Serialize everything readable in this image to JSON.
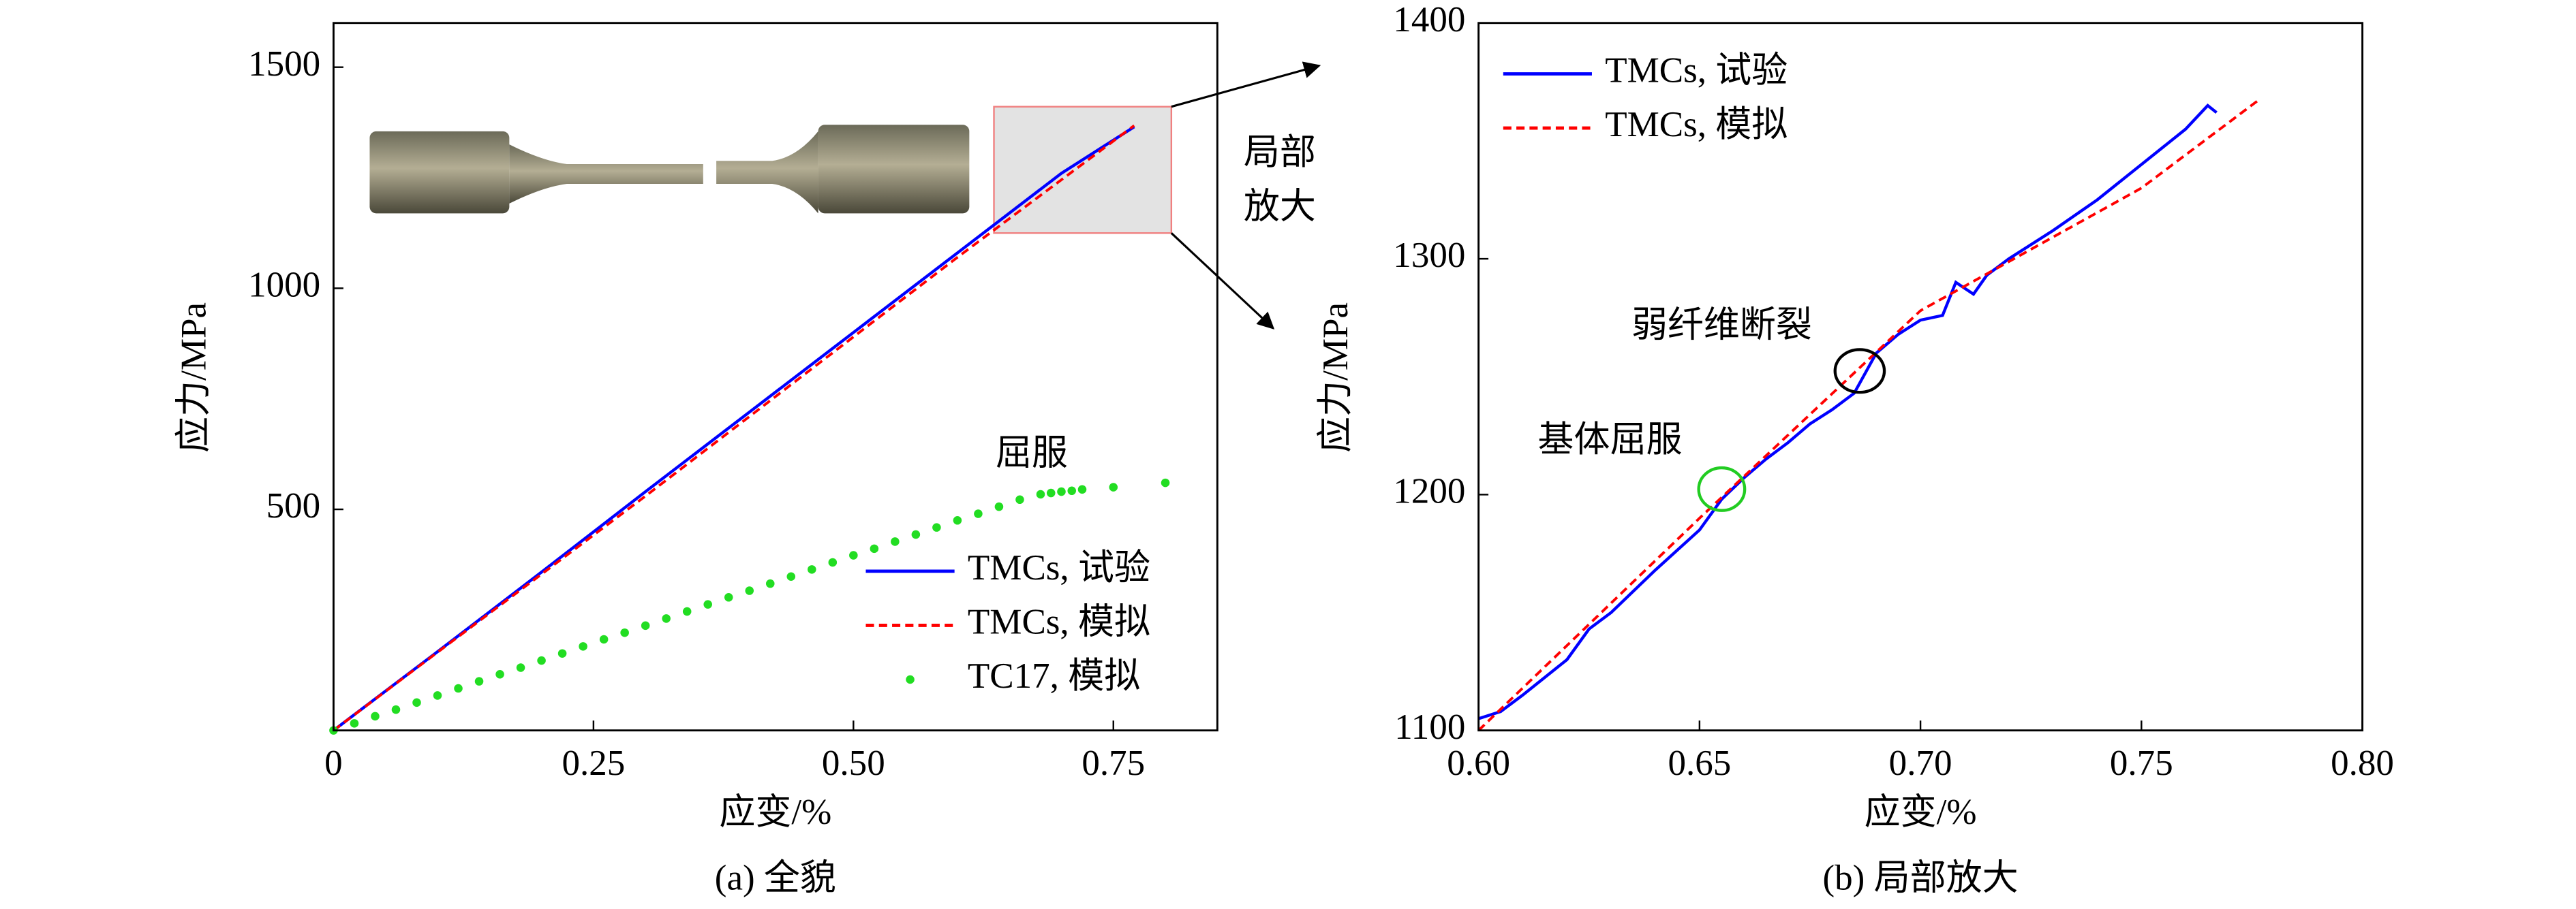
{
  "chart_data": [
    {
      "type": "line",
      "caption": "(a) 全貌",
      "xlabel": "应变/%",
      "ylabel": "应力/MPa",
      "xlim": [
        0,
        0.85
      ],
      "ylim": [
        0,
        1600
      ],
      "xticks": [
        0,
        0.25,
        {
          "value": 0.5,
          "label": "0.50"
        },
        0.75
      ],
      "yticks": [
        500,
        1000,
        1500
      ],
      "annotations": [
        "屈服",
        "局部",
        "放大"
      ],
      "series": [
        {
          "name": "TMCs, 试验",
          "color": "#0000ff",
          "style": "solid",
          "x": [
            0,
            0.1,
            0.2,
            0.3,
            0.4,
            0.5,
            0.6,
            0.7,
            0.77
          ],
          "values": [
            0,
            178,
            358,
            540,
            720,
            900,
            1080,
            1260,
            1365
          ]
        },
        {
          "name": "TMCs, 模拟",
          "color": "#ff0000",
          "style": "dashed",
          "x": [
            0,
            0.3,
            0.6,
            0.77
          ],
          "values": [
            0,
            530,
            1070,
            1368
          ]
        },
        {
          "name": "TC17, 模拟",
          "color": "#22dd22",
          "style": "dots",
          "x": [
            0,
            0.02,
            0.04,
            0.06,
            0.08,
            0.1,
            0.12,
            0.14,
            0.16,
            0.18,
            0.2,
            0.22,
            0.24,
            0.26,
            0.28,
            0.3,
            0.32,
            0.34,
            0.36,
            0.38,
            0.4,
            0.42,
            0.44,
            0.46,
            0.48,
            0.5,
            0.52,
            0.54,
            0.56,
            0.58,
            0.6,
            0.62,
            0.64,
            0.66,
            0.68,
            0.69,
            0.7,
            0.71,
            0.72,
            0.75,
            0.8
          ],
          "values": [
            0,
            16,
            32,
            47,
            63,
            79,
            95,
            111,
            127,
            142,
            158,
            174,
            190,
            206,
            221,
            237,
            253,
            269,
            285,
            301,
            316,
            332,
            348,
            364,
            380,
            396,
            411,
            427,
            443,
            459,
            475,
            490,
            506,
            522,
            534,
            537,
            540,
            542,
            545,
            550,
            560
          ]
        }
      ]
    },
    {
      "type": "line",
      "caption": "(b) 局部放大",
      "xlabel": "应变/%",
      "ylabel": "应力/MPa",
      "xlim": [
        0.6,
        0.8
      ],
      "ylim": [
        1100,
        1400
      ],
      "xticks": [
        {
          "value": 0.6,
          "label": "0.60"
        },
        0.65,
        {
          "value": 0.7,
          "label": "0.70"
        },
        0.75,
        {
          "value": 0.8,
          "label": "0.80"
        }
      ],
      "yticks": [
        1100,
        1200,
        1300,
        1400
      ],
      "annotations": [
        "弱纤维断裂",
        "基体屈服"
      ],
      "series": [
        {
          "name": "TMCs, 试验",
          "color": "#0000ff",
          "style": "solid",
          "x": [
            0.6,
            0.605,
            0.61,
            0.62,
            0.625,
            0.63,
            0.64,
            0.65,
            0.655,
            0.66,
            0.665,
            0.67,
            0.675,
            0.68,
            0.685,
            0.69,
            0.695,
            0.7,
            0.705,
            0.708,
            0.712,
            0.715,
            0.72,
            0.73,
            0.74,
            0.75,
            0.76,
            0.765,
            0.767
          ],
          "values": [
            1105,
            1108,
            1115,
            1130,
            1143,
            1150,
            1168,
            1185,
            1198,
            1207,
            1215,
            1222,
            1230,
            1236,
            1243,
            1260,
            1268,
            1274,
            1276,
            1290,
            1285,
            1293,
            1300,
            1312,
            1325,
            1340,
            1355,
            1365,
            1362
          ]
        },
        {
          "name": "TMCs, 模拟",
          "color": "#ff0000",
          "style": "dashed",
          "x": [
            0.6,
            0.65,
            0.7,
            0.75,
            0.777
          ],
          "values": [
            1100,
            1190,
            1278,
            1330,
            1368
          ]
        }
      ]
    }
  ]
}
